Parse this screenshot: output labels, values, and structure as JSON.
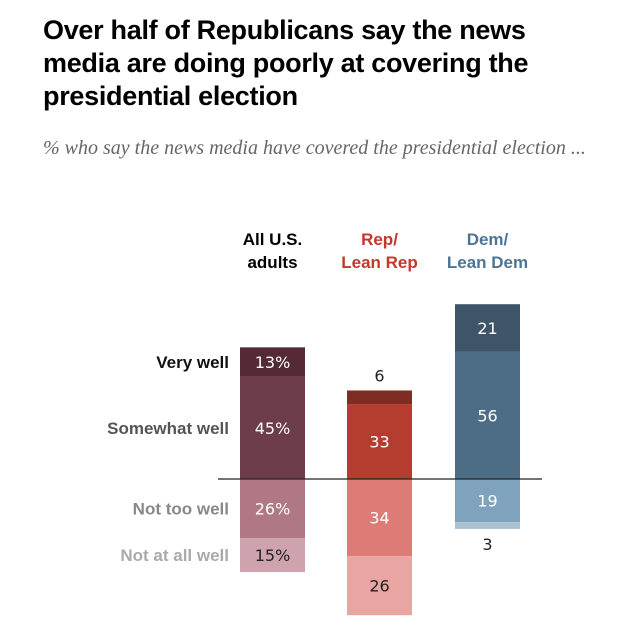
{
  "title": "Over half of Republicans say the news media are doing poorly at covering the presidential election",
  "subtitle": "% who say the news media have covered the presidential election ...",
  "chart_data": {
    "type": "bar",
    "subtype": "diverging-stacked",
    "title": "Over half of Republicans say the news media are doing poorly at covering the presidential election",
    "subtitle": "% who say the news media have covered the presidential election ...",
    "categories": [
      "All U.S. adults",
      "Rep/ Lean Rep",
      "Dem/ Lean Dem"
    ],
    "category_header_lines": [
      [
        "All U.S.",
        "adults"
      ],
      [
        "Rep/",
        "Lean Rep"
      ],
      [
        "Dem/",
        "Lean Dem"
      ]
    ],
    "category_header_colors": [
      "#000000",
      "#c0392b",
      "#4d7496"
    ],
    "response_labels": [
      "Very well",
      "Somewhat well",
      "Not too well",
      "Not at all well"
    ],
    "response_label_colors": [
      "#111111",
      "#555555",
      "#888888",
      "#aaaaaa"
    ],
    "series": [
      {
        "name": "Very well",
        "direction": "positive",
        "values": [
          13,
          6,
          21
        ],
        "labels": [
          "13%",
          "6",
          "21"
        ]
      },
      {
        "name": "Somewhat well",
        "direction": "positive",
        "values": [
          45,
          33,
          56
        ],
        "labels": [
          "45%",
          "33",
          "56"
        ]
      },
      {
        "name": "Not too well",
        "direction": "negative",
        "values": [
          26,
          34,
          19
        ],
        "labels": [
          "26%",
          "34",
          "19"
        ]
      },
      {
        "name": "Not at all well",
        "direction": "negative",
        "values": [
          15,
          26,
          3
        ],
        "labels": [
          "15%",
          "26",
          "3"
        ]
      }
    ],
    "colors": [
      [
        "#552a36",
        "#6e3d4b",
        "#b07884",
        "#cfa3ad"
      ],
      [
        "#7e2c24",
        "#b53d30",
        "#dd7c76",
        "#e9a5a2"
      ],
      [
        "#3e5569",
        "#4d6d87",
        "#7fa3bd",
        "#a9c2d3"
      ]
    ],
    "label_colors": [
      [
        "#ffffff",
        "#ffffff",
        "#ffffff",
        "#222222"
      ],
      [
        "#222222",
        "#ffffff",
        "#ffffff",
        "#222222"
      ],
      [
        "#ffffff",
        "#ffffff",
        "#ffffff",
        "#222222"
      ]
    ],
    "outside_labels": [
      [
        false,
        false,
        false,
        false
      ],
      [
        true,
        false,
        false,
        false
      ],
      [
        false,
        false,
        false,
        true
      ]
    ],
    "xlabel": "",
    "ylabel": "",
    "grid": false,
    "legend": "none"
  }
}
